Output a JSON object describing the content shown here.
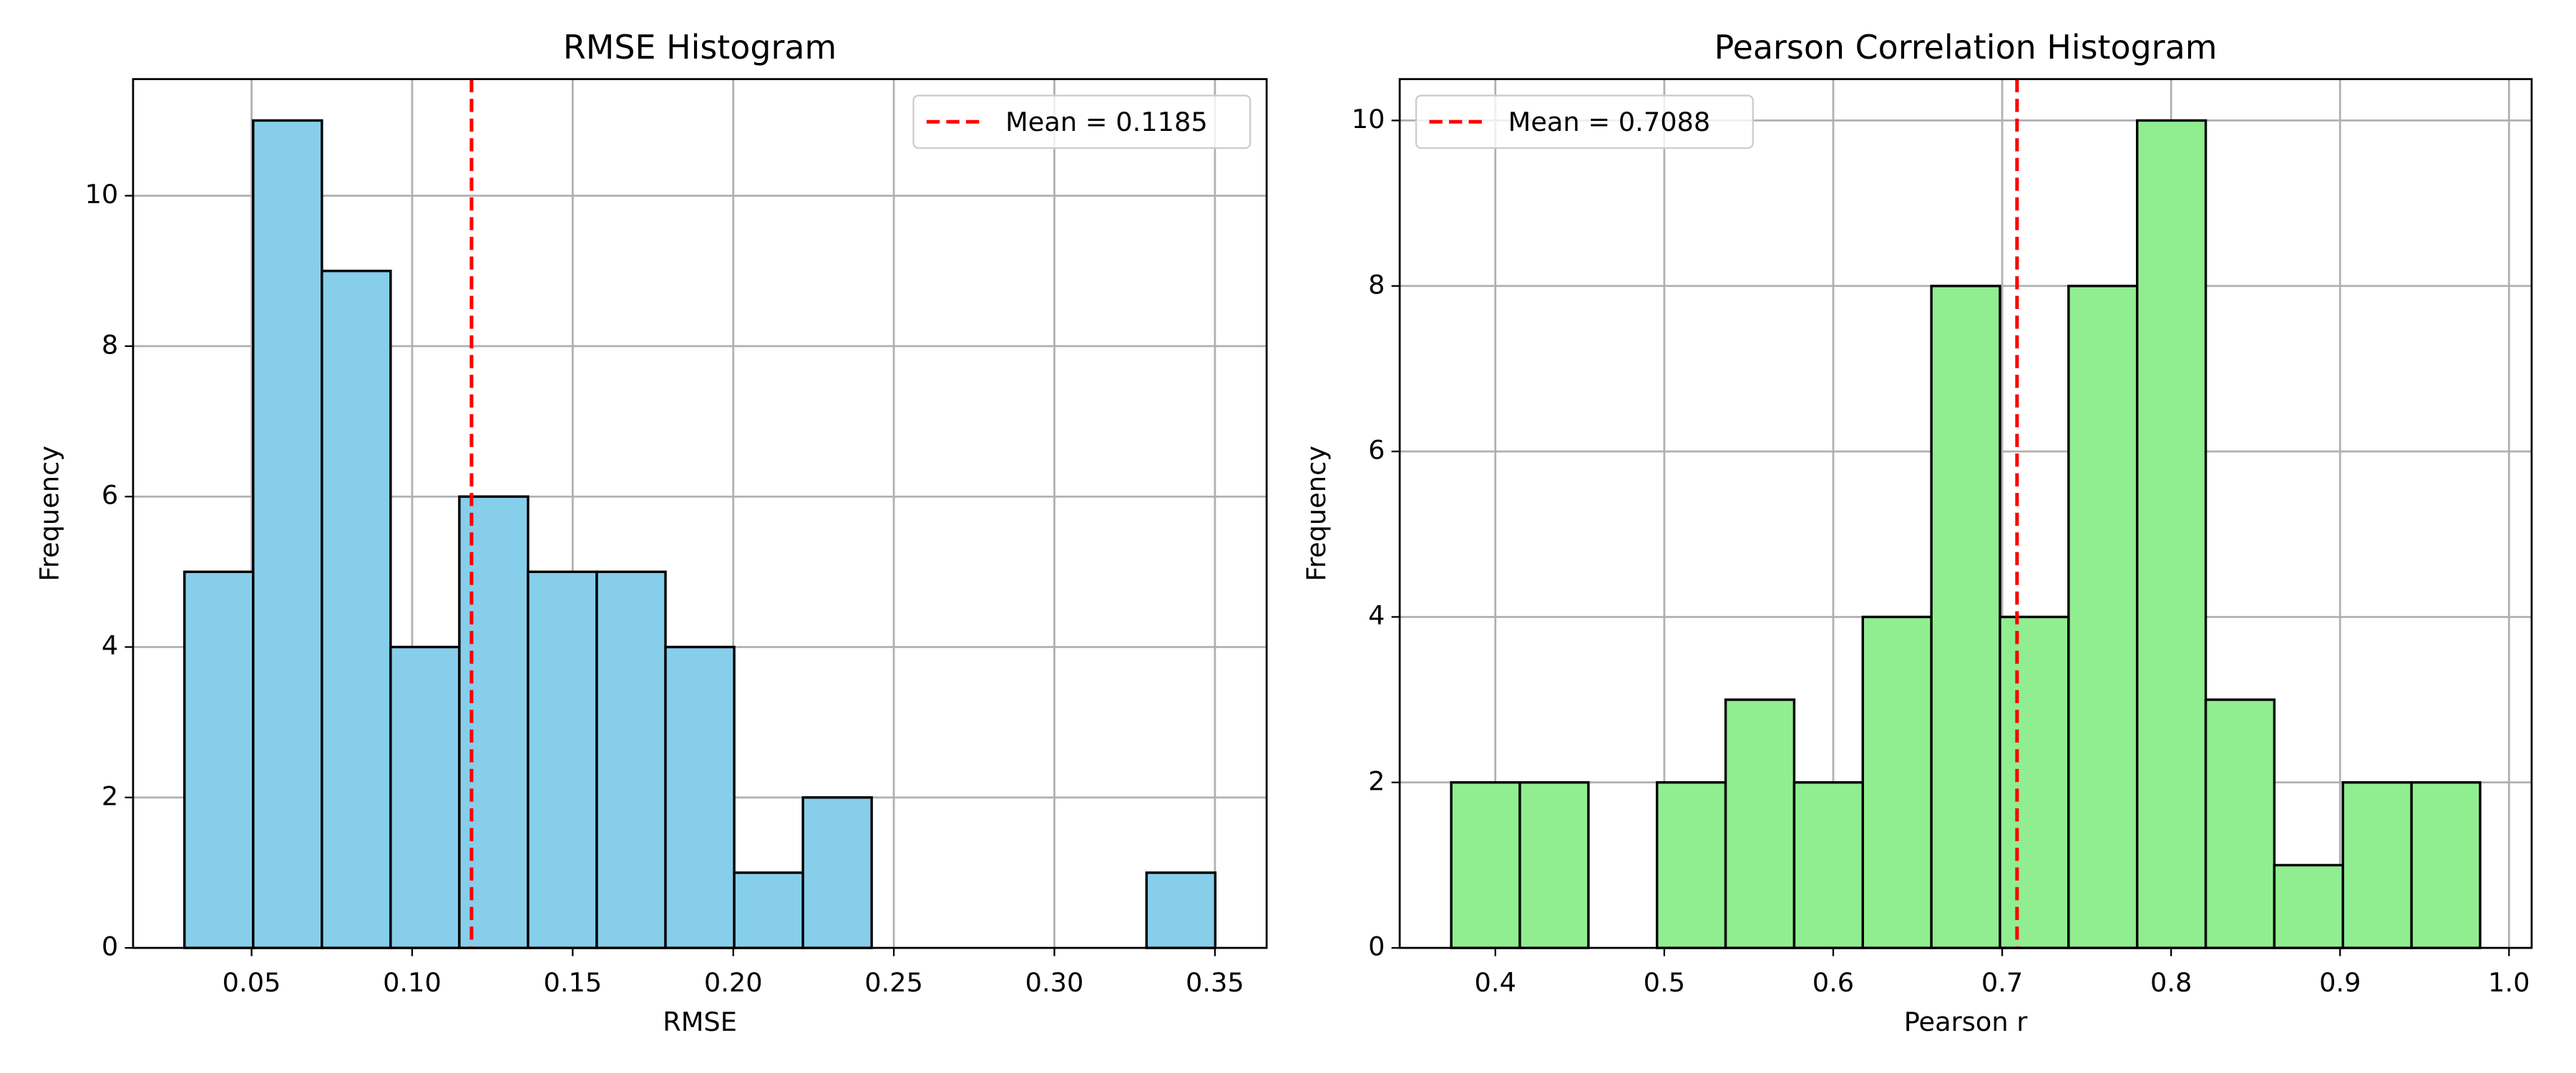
{
  "chart_data": [
    {
      "type": "histogram",
      "title": "RMSE Histogram",
      "x_label": "RMSE",
      "y_label": "Frequency",
      "bins": [
        0.0291,
        0.0505,
        0.0719,
        0.0933,
        0.1147,
        0.1361,
        0.1575,
        0.1789,
        0.2003,
        0.2217,
        0.2431,
        0.2645,
        0.2859,
        0.3073,
        0.3287,
        0.3501
      ],
      "values": [
        5,
        11,
        9,
        4,
        6,
        5,
        5,
        4,
        1,
        2,
        0,
        0,
        0,
        0,
        1
      ],
      "color": "#87ceeb",
      "edge_color": "#000000",
      "xlim": [
        0.0131,
        0.3661
      ],
      "ylim": [
        0,
        11.55
      ],
      "xticks": [
        0.05,
        {
          "value": 0.1,
          "label": "0.10"
        },
        0.15,
        {
          "value": 0.2,
          "label": "0.20"
        },
        0.25,
        {
          "value": 0.3,
          "label": "0.30"
        },
        0.35
      ],
      "yticks": [
        0,
        2,
        4,
        6,
        8,
        10
      ],
      "grid": true,
      "mean_line": {
        "value": 0.1185,
        "label": "Mean = 0.1185",
        "color": "#ff0000"
      },
      "legend_loc": "upper right"
    },
    {
      "type": "histogram",
      "title": "Pearson Correlation Histogram",
      "x_label": "Pearson r",
      "y_label": "Frequency",
      "bins": [
        0.3739,
        0.4145,
        0.4551,
        0.4957,
        0.5363,
        0.5769,
        0.6175,
        0.6581,
        0.6987,
        0.7393,
        0.7799,
        0.8205,
        0.8611,
        0.9017,
        0.9423,
        0.9829
      ],
      "values": [
        2,
        2,
        0,
        2,
        3,
        2,
        4,
        8,
        4,
        8,
        10,
        3,
        1,
        2,
        2
      ],
      "color": "#90ee90",
      "edge_color": "#000000",
      "xlim": [
        0.3434,
        1.0134
      ],
      "ylim": [
        0,
        10.5
      ],
      "xticks": [
        0.4,
        0.5,
        0.6,
        0.7,
        0.8,
        0.9,
        {
          "value": 1.0,
          "label": "1.0"
        }
      ],
      "yticks": [
        0,
        2,
        4,
        6,
        8,
        10
      ],
      "grid": true,
      "mean_line": {
        "value": 0.7088,
        "label": "Mean = 0.7088",
        "color": "#ff0000"
      },
      "legend_loc": "upper left"
    }
  ]
}
